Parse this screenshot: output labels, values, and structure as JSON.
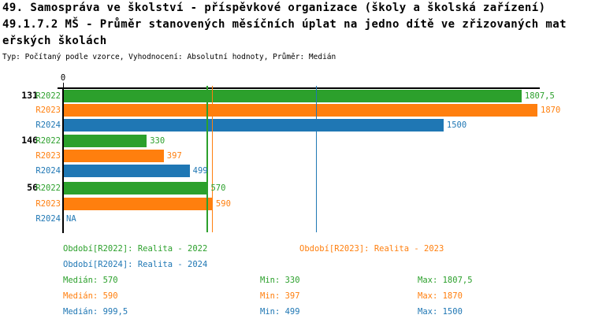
{
  "header": {
    "title_line1": "49. Samospráva ve školství - příspěvkové organizace (školy a školská zařízení)",
    "title_line2": "49.1.7.2 MŠ - Průměr stanovených měsíčních úplat na jedno dítě ve zřizovaných mat",
    "title_line3": "eřských školách",
    "subtitle": "Typ: Počítaný podle vzorce, Vyhodnocení: Absolutní hodnoty, Průměr: Medián"
  },
  "colors": {
    "series": {
      "R2022": "#2ca02c",
      "R2023": "#ff7f0e",
      "R2024": "#1f77b4"
    },
    "axis": "#000000",
    "background": "#ffffff"
  },
  "chart_data": {
    "type": "bar",
    "orientation": "horizontal",
    "grid": false,
    "x_axis": {
      "tick_label": "0",
      "min": 0,
      "max": 1880,
      "position": "top"
    },
    "xlabel": "",
    "ylabel": "",
    "series_names": [
      "R2022",
      "R2023",
      "R2024"
    ],
    "groups": [
      {
        "label": "131",
        "bars": [
          {
            "series": "R2022",
            "value": 1807.5,
            "value_label": "1807,5"
          },
          {
            "series": "R2023",
            "value": 1870,
            "value_label": "1870"
          },
          {
            "series": "R2024",
            "value": 1500,
            "value_label": "1500"
          }
        ]
      },
      {
        "label": "146",
        "bars": [
          {
            "series": "R2022",
            "value": 330,
            "value_label": "330"
          },
          {
            "series": "R2023",
            "value": 397,
            "value_label": "397"
          },
          {
            "series": "R2024",
            "value": 499,
            "value_label": "499"
          }
        ]
      },
      {
        "label": "56",
        "bars": [
          {
            "series": "R2022",
            "value": 570,
            "value_label": "570"
          },
          {
            "series": "R2023",
            "value": 590,
            "value_label": "590"
          },
          {
            "series": "R2024",
            "value": null,
            "value_label": "NA"
          }
        ]
      }
    ],
    "median_lines": [
      {
        "series": "R2022",
        "value": 570
      },
      {
        "series": "R2023",
        "value": 590
      },
      {
        "series": "R2024",
        "value": 999.5
      }
    ]
  },
  "legend": {
    "items": [
      {
        "series": "R2022",
        "label": "Období[R2022]: Realita - 2022",
        "row": 0,
        "col": 0
      },
      {
        "series": "R2023",
        "label": "Období[R2023]: Realita - 2023",
        "row": 0,
        "col": 1
      },
      {
        "series": "R2024",
        "label": "Období[R2024]: Realita - 2024",
        "row": 1,
        "col": 0
      }
    ]
  },
  "stats": {
    "rows": [
      {
        "series": "R2022",
        "median": "Medián: 570",
        "min": "Min: 330",
        "max": "Max: 1807,5"
      },
      {
        "series": "R2023",
        "median": "Medián: 590",
        "min": "Min: 397",
        "max": "Max: 1870"
      },
      {
        "series": "R2024",
        "median": "Medián: 999,5",
        "min": "Min: 499",
        "max": "Max: 1500"
      }
    ]
  }
}
